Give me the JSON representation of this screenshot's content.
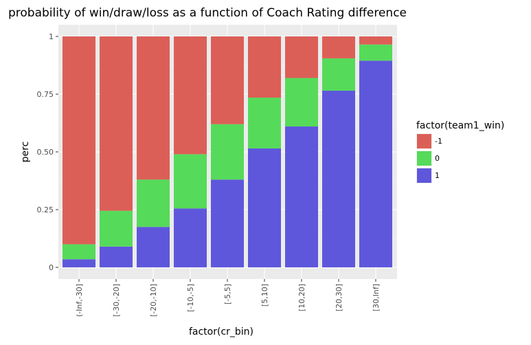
{
  "chart_data": {
    "type": "bar",
    "stacked": true,
    "title": "probability of win/draw/loss as a function of Coach Rating difference",
    "xlabel": "factor(cr_bin)",
    "ylabel": "perc",
    "ylim": [
      0,
      1
    ],
    "yticks": [
      0,
      0.25,
      0.5,
      0.75,
      1
    ],
    "ytick_labels": [
      "0",
      "0.25",
      "0.50",
      "0.75",
      "1"
    ],
    "grid": true,
    "legend_position": "right",
    "legend_title": "factor(team1_win)",
    "categories": [
      "(-Inf,-30]",
      "[-30,-20]",
      "[-20,-10]",
      "[-10,-5]",
      "[-5,5]",
      "[5,10]",
      "[10,20]",
      "[20,30]",
      "[30,Inf]"
    ],
    "series": [
      {
        "name": "1",
        "color": "#5e57dc",
        "values": [
          0.035,
          0.09,
          0.175,
          0.255,
          0.38,
          0.515,
          0.61,
          0.765,
          0.895
        ]
      },
      {
        "name": "0",
        "color": "#56da5a",
        "values": [
          0.065,
          0.155,
          0.205,
          0.235,
          0.24,
          0.22,
          0.21,
          0.14,
          0.07
        ]
      },
      {
        "name": "-1",
        "color": "#dc5f57",
        "values": [
          0.9,
          0.755,
          0.62,
          0.51,
          0.38,
          0.265,
          0.18,
          0.095,
          0.035
        ]
      }
    ],
    "legend_order": [
      "-1",
      "0",
      "1"
    ]
  }
}
